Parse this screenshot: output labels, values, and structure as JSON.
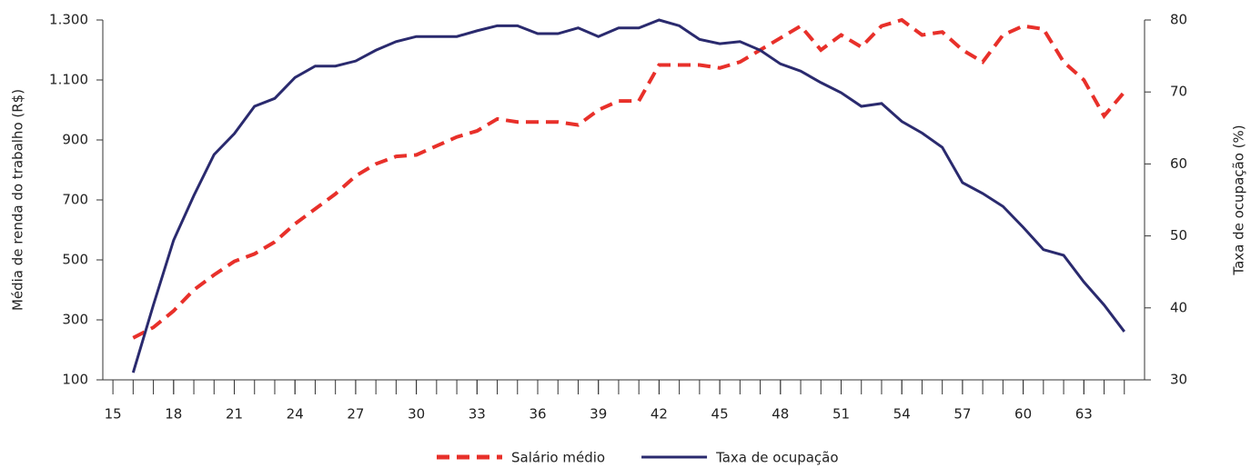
{
  "chart_data": {
    "type": "line",
    "x": [
      16,
      17,
      18,
      19,
      20,
      21,
      22,
      23,
      24,
      25,
      26,
      27,
      28,
      29,
      30,
      31,
      32,
      33,
      34,
      35,
      36,
      37,
      38,
      39,
      40,
      41,
      42,
      43,
      44,
      45,
      46,
      47,
      48,
      49,
      50,
      51,
      52,
      53,
      54,
      55,
      56,
      57,
      58,
      59,
      60,
      61,
      62,
      63,
      64,
      65
    ],
    "xlim": [
      14.5,
      66
    ],
    "xticks": [
      15,
      18,
      21,
      24,
      27,
      30,
      33,
      36,
      39,
      42,
      45,
      48,
      51,
      54,
      57,
      60,
      63
    ],
    "ylim": [
      100,
      1300
    ],
    "yticks": [
      100,
      300,
      500,
      700,
      900,
      {
        "value": 1100,
        "label": "1.100"
      },
      {
        "value": 1300,
        "label": "1.300"
      }
    ],
    "y2lim": [
      30,
      80
    ],
    "y2ticks": [
      30,
      40,
      50,
      60,
      70,
      80
    ],
    "y_label": "Média de renda do trabalho (R$)",
    "y2_label": "Taxa de ocupação (%)",
    "series": [
      {
        "name": "Salário médio",
        "color": "#e8302a",
        "dashed": true,
        "values": [
          240,
          275,
          330,
          400,
          450,
          495,
          520,
          560,
          620,
          670,
          720,
          780,
          820,
          845,
          850,
          880,
          910,
          930,
          970,
          960,
          960,
          960,
          950,
          1000,
          1030,
          1030,
          1150,
          1150,
          1150,
          1140,
          1160,
          1200,
          1240,
          1280,
          1200,
          1250,
          1210,
          1280,
          1300,
          1250,
          1260,
          1200,
          1160,
          1250,
          1280,
          1270,
          1160,
          1100,
          980,
          1060
        ]
      },
      {
        "name": "Taxa de ocupação",
        "color": "#2a2a6e",
        "axis": "y2",
        "values": [
          31,
          40.4,
          49.4,
          55.6,
          61.3,
          64.2,
          68,
          69.1,
          72,
          73.6,
          73.6,
          74.3,
          75.8,
          77,
          77.7,
          77.7,
          77.7,
          78.5,
          79.2,
          79.2,
          78.1,
          78.1,
          78.9,
          77.7,
          78.9,
          78.9,
          80,
          79.2,
          77.3,
          76.7,
          77,
          75.8,
          73.9,
          72.9,
          71.3,
          69.9,
          68,
          68.4,
          65.9,
          64.3,
          62.3,
          57.4,
          55.9,
          54.1,
          51.2,
          48.1,
          47.3,
          43.6,
          40.4,
          36.7
        ]
      }
    ]
  }
}
